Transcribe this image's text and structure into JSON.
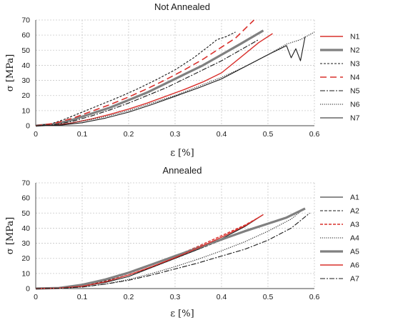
{
  "chart_data": [
    {
      "type": "line",
      "title": "Not Annealed",
      "xlabel": "ε [%]",
      "ylabel": "σ [MPa]",
      "xlim": [
        0,
        0.6
      ],
      "ylim": [
        0,
        70
      ],
      "xticks": [
        "0",
        "0.1",
        "0.2",
        "0.3",
        "0.4",
        "0.5",
        "0.6"
      ],
      "yticks": [
        "0",
        "10",
        "20",
        "30",
        "40",
        "50",
        "60",
        "70"
      ],
      "grid": true,
      "legend_position": "right",
      "series": [
        {
          "name": "N1",
          "color": "#d9302c",
          "dash": "solid",
          "width": 1.4,
          "x": [
            0,
            0.04,
            0.08,
            0.12,
            0.16,
            0.2,
            0.24,
            0.28,
            0.32,
            0.36,
            0.4,
            0.44,
            0.48,
            0.51
          ],
          "y": [
            0,
            0.3,
            2,
            4.5,
            7.5,
            11,
            15,
            19.5,
            24,
            29,
            35,
            45,
            55,
            61
          ]
        },
        {
          "name": "N2",
          "color": "#808080",
          "dash": "solid",
          "width": 3.2,
          "x": [
            0,
            0.04,
            0.08,
            0.12,
            0.16,
            0.2,
            0.24,
            0.28,
            0.32,
            0.36,
            0.4,
            0.44,
            0.49
          ],
          "y": [
            0,
            1,
            4,
            8,
            12,
            17,
            22,
            28,
            34,
            40,
            47,
            54,
            63
          ]
        },
        {
          "name": "N3",
          "color": "#1a1a1a",
          "dash": "3 2",
          "width": 1.1,
          "x": [
            0,
            0.03,
            0.06,
            0.1,
            0.14,
            0.18,
            0.22,
            0.26,
            0.3,
            0.34,
            0.37,
            0.39,
            0.41,
            0.43
          ],
          "y": [
            0,
            1,
            4,
            9,
            14,
            19,
            24.5,
            30.5,
            37,
            45,
            52,
            57,
            59,
            62
          ]
        },
        {
          "name": "N4",
          "color": "#d9302c",
          "dash": "9 5",
          "width": 1.6,
          "x": [
            0,
            0.04,
            0.08,
            0.12,
            0.16,
            0.2,
            0.24,
            0.28,
            0.32,
            0.36,
            0.39,
            0.43,
            0.47
          ],
          "y": [
            0,
            1.5,
            5,
            9.5,
            14,
            19,
            24.5,
            30.5,
            37,
            44,
            50,
            58,
            70
          ]
        },
        {
          "name": "N5",
          "color": "#1a1a1a",
          "dash": "7 2 2 2",
          "width": 1.1,
          "x": [
            0,
            0.04,
            0.08,
            0.12,
            0.16,
            0.2,
            0.24,
            0.28,
            0.32,
            0.36,
            0.4,
            0.44,
            0.48
          ],
          "y": [
            0,
            0.6,
            3,
            6.5,
            10.5,
            15,
            20,
            25,
            31,
            37,
            43,
            50,
            57
          ]
        },
        {
          "name": "N6",
          "color": "#1a1a1a",
          "dash": "1.2 1.6",
          "width": 1.1,
          "x": [
            0,
            0.05,
            0.1,
            0.15,
            0.2,
            0.25,
            0.3,
            0.35,
            0.4,
            0.45,
            0.5,
            0.54,
            0.57,
            0.6
          ],
          "y": [
            0,
            0.5,
            3,
            6,
            10,
            15,
            20,
            26,
            32,
            39,
            47,
            54,
            57,
            62
          ]
        },
        {
          "name": "N7",
          "color": "#1a1a1a",
          "dash": "solid",
          "width": 1.1,
          "x": [
            0,
            0.05,
            0.1,
            0.15,
            0.2,
            0.25,
            0.3,
            0.35,
            0.4,
            0.45,
            0.5,
            0.54,
            0.55,
            0.56,
            0.57,
            0.58
          ],
          "y": [
            0,
            0.3,
            2,
            5,
            9,
            14,
            19.5,
            25,
            31,
            39,
            47,
            53,
            45,
            51,
            43,
            59
          ]
        }
      ]
    },
    {
      "type": "line",
      "title": "Annealed",
      "xlabel": "ε [%]",
      "ylabel": "σ [MPa]",
      "xlim": [
        0,
        0.6
      ],
      "ylim": [
        0,
        70
      ],
      "xticks": [
        "0",
        "0.1",
        "0.2",
        "0.3",
        "0.4",
        "0.5",
        "0.6"
      ],
      "yticks": [
        "0",
        "10",
        "20",
        "30",
        "40",
        "50",
        "60",
        "70"
      ],
      "grid": true,
      "legend_position": "right",
      "series": [
        {
          "name": "A1",
          "color": "#1a1a1a",
          "dash": "solid",
          "width": 1.1,
          "x": [
            0,
            0.05,
            0.1,
            0.15,
            0.2,
            0.25,
            0.3,
            0.35,
            0.4,
            0.45,
            0.49
          ],
          "y": [
            0,
            0.3,
            1.5,
            4,
            8,
            14,
            20,
            26,
            33,
            41,
            49
          ]
        },
        {
          "name": "A2",
          "color": "#1a1a1a",
          "dash": "4 2",
          "width": 1.1,
          "x": [
            0,
            0.05,
            0.1,
            0.15,
            0.2,
            0.25,
            0.3,
            0.35,
            0.4,
            0.45,
            0.48
          ],
          "y": [
            0,
            0.4,
            2,
            5,
            9,
            14,
            20,
            26,
            32,
            38,
            41
          ]
        },
        {
          "name": "A3",
          "color": "#d9302c",
          "dash": "4 2",
          "width": 1.4,
          "x": [
            0,
            0.05,
            0.1,
            0.15,
            0.2,
            0.25,
            0.3,
            0.35,
            0.4,
            0.45,
            0.48
          ],
          "y": [
            0,
            0.4,
            2,
            5.5,
            10,
            15.5,
            21.5,
            28,
            35,
            42,
            47
          ]
        },
        {
          "name": "A4",
          "color": "#1a1a1a",
          "dash": "1.2 1.6",
          "width": 1.1,
          "x": [
            0,
            0.05,
            0.1,
            0.15,
            0.2,
            0.25,
            0.3,
            0.35,
            0.4,
            0.45,
            0.5,
            0.55,
            0.57
          ],
          "y": [
            0,
            0.2,
            1,
            3,
            6,
            10,
            14.5,
            19.5,
            25,
            31,
            38,
            46,
            51
          ]
        },
        {
          "name": "A5",
          "color": "#808080",
          "dash": "solid",
          "width": 3.2,
          "x": [
            0,
            0.05,
            0.1,
            0.15,
            0.2,
            0.25,
            0.3,
            0.35,
            0.4,
            0.45,
            0.5,
            0.54,
            0.58
          ],
          "y": [
            0,
            0.4,
            2.5,
            6,
            10.5,
            16,
            21.5,
            27,
            32.5,
            38,
            43,
            47,
            53
          ]
        },
        {
          "name": "A6",
          "color": "#d9302c",
          "dash": "solid",
          "width": 1.4,
          "x": [
            0,
            0.05,
            0.1,
            0.15,
            0.2,
            0.25,
            0.3,
            0.35,
            0.4,
            0.45,
            0.49
          ],
          "y": [
            0,
            0.3,
            1.5,
            4.5,
            9,
            14.5,
            20.5,
            27,
            34,
            41.5,
            49
          ]
        },
        {
          "name": "A7",
          "color": "#1a1a1a",
          "dash": "7 2 2 2",
          "width": 1.1,
          "x": [
            0,
            0.05,
            0.1,
            0.15,
            0.2,
            0.25,
            0.3,
            0.35,
            0.4,
            0.45,
            0.5,
            0.55,
            0.59
          ],
          "y": [
            0,
            0.2,
            1,
            3,
            5.5,
            9,
            13,
            17,
            21.5,
            26,
            32,
            40,
            50
          ]
        }
      ]
    }
  ]
}
